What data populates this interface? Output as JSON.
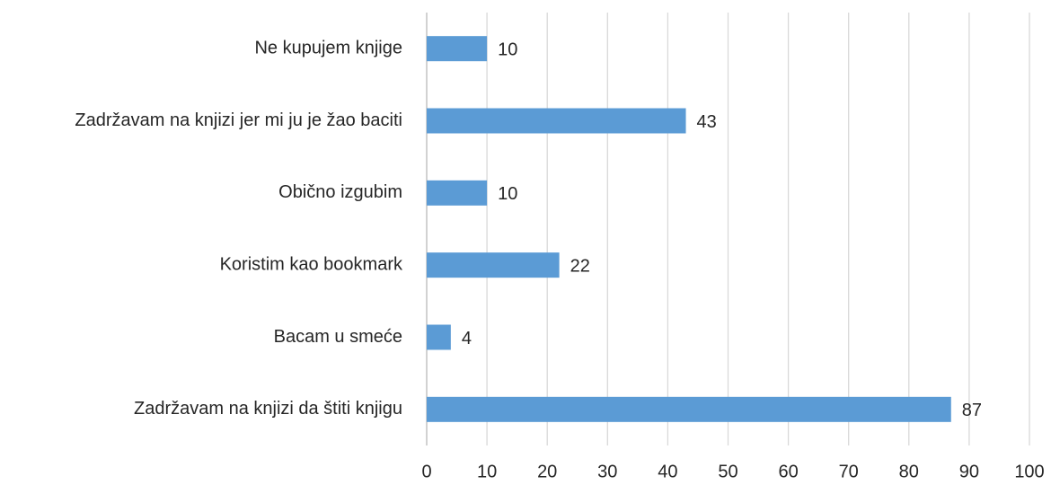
{
  "chart_data": {
    "type": "bar",
    "orientation": "horizontal",
    "categories": [
      "Ne kupujem knjige",
      "Zadržavam na knjizi jer mi ju je žao baciti",
      "Obično izgubim",
      "Koristim kao bookmark",
      "Bacam u smeće",
      "Zadržavam na knjizi da štiti knjigu"
    ],
    "values": [
      10,
      43,
      10,
      22,
      4,
      87
    ],
    "color": "#5b9bd5",
    "xlim": [
      0,
      100
    ],
    "xticks": [
      0,
      10,
      20,
      30,
      40,
      50,
      60,
      70,
      80,
      90,
      100
    ],
    "grid": true
  }
}
